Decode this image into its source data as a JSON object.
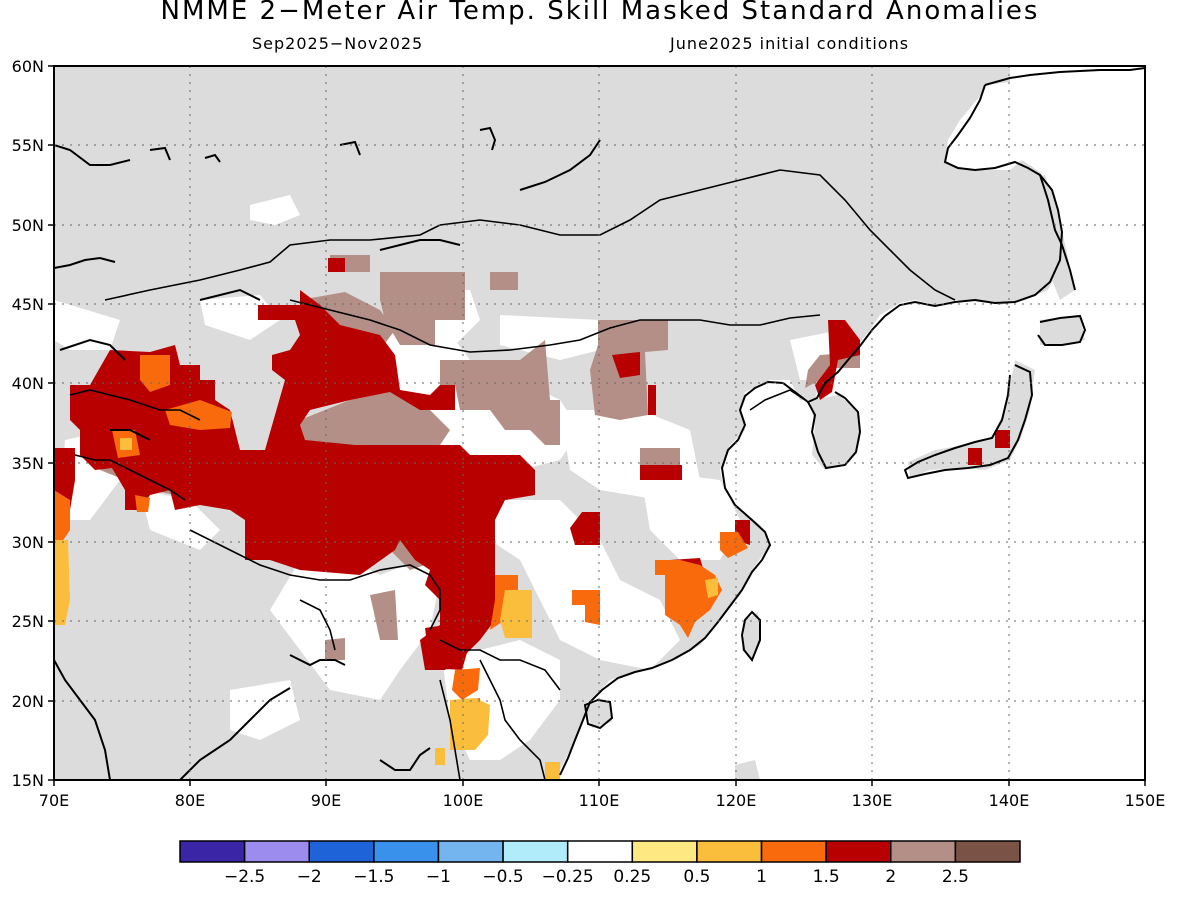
{
  "title": "NMME 2−Meter Air Temp. Skill Masked Standard Anomalies",
  "subtitle_left": "Sep2025−Nov2025",
  "subtitle_right": "June2025 initial conditions",
  "map": {
    "lon_range": [
      70,
      150
    ],
    "lat_range": [
      15,
      60
    ],
    "lon_ticks": [
      "70E",
      "80E",
      "90E",
      "100E",
      "110E",
      "120E",
      "130E",
      "140E",
      "150E"
    ],
    "lat_ticks": [
      "15N",
      "20N",
      "25N",
      "30N",
      "35N",
      "40N",
      "45N",
      "50N",
      "55N",
      "60N"
    ],
    "grid_lines": "dotted",
    "land_color": "#dcdcdc",
    "ocean_color": "#ffffff",
    "coastline_color": "#000000"
  },
  "colorbar": {
    "colors": [
      "#3a25a6",
      "#9b8ced",
      "#1f63d8",
      "#3a91ec",
      "#74b5ef",
      "#b0ecf9",
      "#ffffff",
      "#fde882",
      "#fbbd3c",
      "#f86a0c",
      "#b90000",
      "#b38f87",
      "#7a5246"
    ],
    "labels": [
      "−2.5",
      "−2",
      "−1.5",
      "−1",
      "−0.5",
      "−0.25",
      "0.25",
      "0.5",
      "1",
      "1.5",
      "2",
      "2.5"
    ]
  }
}
